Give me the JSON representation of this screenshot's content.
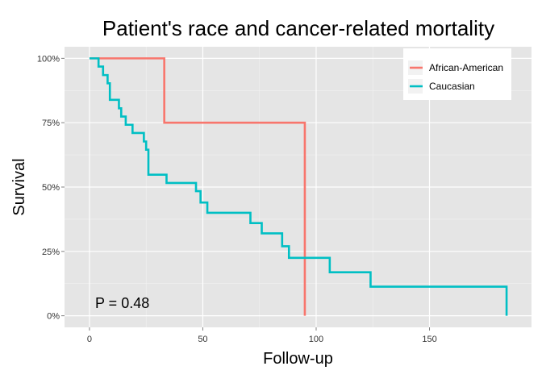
{
  "chart_data": {
    "type": "line",
    "subtype": "kaplan-meier-step",
    "title": "Patient's race and cancer-related mortality",
    "xlabel": "Follow-up",
    "ylabel": "Survival",
    "xlim": [
      -11,
      195
    ],
    "ylim": [
      -0.045,
      1.045
    ],
    "x_ticks": [
      0,
      50,
      100,
      150
    ],
    "y_ticks": [
      0,
      0.25,
      0.5,
      0.75,
      1.0
    ],
    "y_tick_labels": [
      "0%",
      "25%",
      "50%",
      "75%",
      "100%"
    ],
    "grid": true,
    "legend_position": "top-right",
    "annotation": "P = 0.48",
    "series": [
      {
        "name": "African-American",
        "color": "#F8766D",
        "x": [
          0,
          33,
          95
        ],
        "y": [
          1.0,
          0.75,
          0.0
        ]
      },
      {
        "name": "Caucasian",
        "color": "#00BFC4",
        "x": [
          0,
          4,
          6,
          8,
          9,
          13,
          14,
          16,
          19,
          24,
          25,
          26,
          34,
          47,
          49,
          52,
          71,
          76,
          85,
          88,
          106,
          124,
          184
        ],
        "y": [
          1.0,
          0.968,
          0.935,
          0.903,
          0.839,
          0.806,
          0.774,
          0.742,
          0.71,
          0.677,
          0.645,
          0.548,
          0.516,
          0.484,
          0.44,
          0.4,
          0.36,
          0.32,
          0.27,
          0.225,
          0.169,
          0.113,
          0.0
        ]
      }
    ]
  }
}
